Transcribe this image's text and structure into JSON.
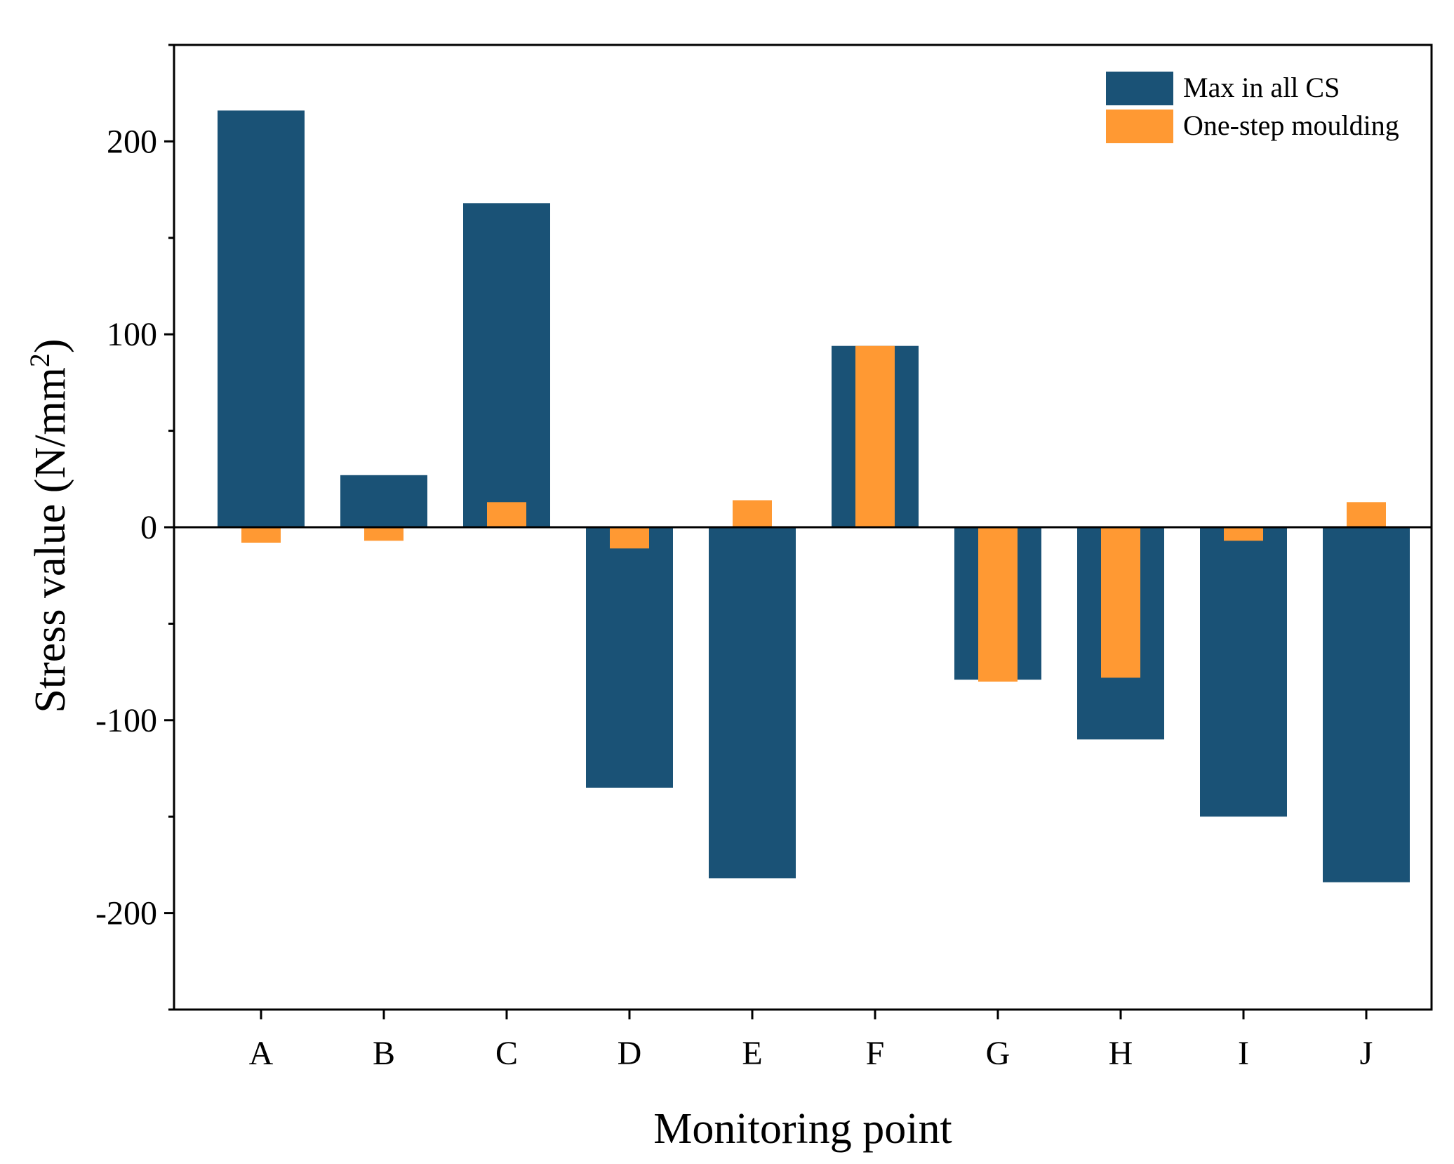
{
  "chart_data": {
    "type": "bar",
    "title": "",
    "xlabel": "Monitoring point",
    "ylabel": "Stress value (N/mm",
    "ylabel_superscript": "2",
    "ylabel_close": ")",
    "ylim": [
      -250,
      250
    ],
    "yticks": [
      -200,
      -100,
      0,
      100,
      200
    ],
    "ytick_labels": [
      "-200",
      "-100",
      "0",
      "100",
      "200"
    ],
    "categories": [
      "A",
      "B",
      "C",
      "D",
      "E",
      "F",
      "G",
      "H",
      "I",
      "J"
    ],
    "series": [
      {
        "name": "Max in all CS",
        "color": "#1a5276",
        "values": [
          216,
          27,
          168,
          -135,
          -182,
          94,
          -79,
          -110,
          -150,
          -184
        ]
      },
      {
        "name": "One-step moulding",
        "color": "#ff9933",
        "values": [
          -8,
          -7,
          13,
          -11,
          14,
          94,
          -80,
          -78,
          -7,
          13
        ]
      }
    ],
    "legend_position": "top-right",
    "zero_line": true
  }
}
